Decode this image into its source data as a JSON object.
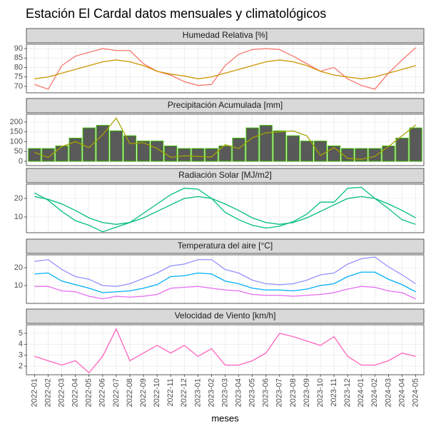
{
  "title": "Estación El Cardal datos mensuales y climatológicos",
  "chart_data": [
    {
      "type": "line",
      "title": "Humedad Relativa [%]",
      "ylim": [
        66.6,
        92.3
      ],
      "yticks": [
        70,
        75,
        80,
        85,
        90
      ],
      "grid": true,
      "series": [
        {
          "color": "#F8766D",
          "values": [
            71,
            68.5,
            81,
            86,
            88,
            90,
            89,
            89,
            82,
            78,
            76,
            72.5,
            70.5,
            71,
            81,
            87,
            89.5,
            90,
            89.5,
            86,
            82,
            78,
            80,
            74,
            70.5,
            68.5,
            77,
            84,
            90.5
          ]
        },
        {
          "color": "#CD9600",
          "values": [
            74,
            75,
            77,
            79,
            81,
            83,
            84,
            83,
            81,
            78,
            76.5,
            75.5,
            74,
            75,
            77,
            79,
            81,
            83,
            84,
            83,
            81,
            78,
            76,
            75,
            74,
            75,
            77,
            79,
            81
          ]
        }
      ]
    },
    {
      "type": "line",
      "title": "Precipitación Acumulada [mm]",
      "ylim": [
        -22,
        240
      ],
      "yticks": [
        0,
        50,
        100,
        150,
        200
      ],
      "grid": true,
      "series": [
        {
          "type": "bar",
          "color": "#595959",
          "edge_color": "#39B600",
          "values": [
            65,
            65,
            78,
            118,
            170,
            183,
            155,
            130,
            103,
            103,
            78,
            65,
            65,
            65,
            78,
            118,
            170,
            183,
            155,
            130,
            103,
            103,
            78,
            65,
            65,
            65,
            78,
            118,
            170
          ]
        },
        {
          "type": "line",
          "color": "#A3A500",
          "values": [
            45,
            20,
            75,
            100,
            70,
            135,
            220,
            90,
            95,
            65,
            20,
            28,
            25,
            22,
            85,
            65,
            120,
            145,
            150,
            155,
            130,
            30,
            70,
            15,
            10,
            25,
            75,
            130,
            185
          ]
        }
      ]
    },
    {
      "type": "line",
      "title": "Radiación Solar [MJ/m2]",
      "ylim": [
        1.5,
        27.7
      ],
      "yticks": [
        10,
        20
      ],
      "grid": true,
      "series": [
        {
          "color": "#00BA82",
          "values": [
            21,
            19.5,
            17,
            13.5,
            9.5,
            7,
            6,
            7,
            9.5,
            13,
            16.5,
            20,
            21,
            20,
            17,
            13.5,
            9.5,
            7,
            6,
            7,
            9.5,
            13,
            16.5,
            20,
            21,
            20,
            17,
            13.5,
            9.5
          ]
        },
        {
          "color": "#00BF7D",
          "values": [
            23,
            19,
            13,
            8,
            5.5,
            2,
            4.5,
            7,
            12,
            17,
            22,
            25.5,
            25,
            20,
            12.5,
            8.5,
            5.5,
            4,
            5,
            7.5,
            11.5,
            18,
            18,
            25.5,
            26,
            20,
            14.5,
            8.5,
            6
          ]
        }
      ]
    },
    {
      "type": "line",
      "title": "Temperatura del aire [°C]",
      "ylim": [
        0,
        27.2
      ],
      "yticks": [
        10,
        20
      ],
      "grid": true,
      "series": [
        {
          "color": "#9590FF",
          "values": [
            23.5,
            24.5,
            19,
            15,
            13.5,
            10,
            9.5,
            11,
            14,
            17,
            21,
            22,
            24.5,
            24.5,
            19,
            17,
            13,
            11,
            10.5,
            11,
            13,
            16,
            17,
            22,
            25,
            26,
            20.5,
            16,
            11
          ]
        },
        {
          "color": "#00B0F6",
          "values": [
            16.5,
            17,
            12.5,
            10.5,
            8.5,
            6,
            6.5,
            7,
            8.5,
            10.5,
            15,
            15.5,
            17,
            16.5,
            12.5,
            11,
            8.5,
            7.5,
            7.5,
            7,
            8,
            10,
            11,
            15,
            17.5,
            17.5,
            13.5,
            10.5,
            6.5
          ]
        },
        {
          "color": "#E76BF3",
          "values": [
            9.5,
            9.5,
            7,
            6.5,
            4,
            2.5,
            4,
            3.5,
            4,
            5,
            8.5,
            9,
            9.5,
            8.5,
            7.5,
            7,
            5,
            4.5,
            4.5,
            4,
            4.5,
            5,
            6,
            8,
            9.5,
            9,
            7,
            6,
            2.5
          ]
        }
      ]
    },
    {
      "type": "line",
      "title": "Velocidad de Viento [km/h]",
      "ylim": [
        1.22,
        5.78
      ],
      "yticks": [
        2,
        3,
        4,
        5
      ],
      "grid": true,
      "x_label": "meses",
      "categories": [
        "2022-01",
        "2022-02",
        "2022-03",
        "2022-04",
        "2022-05",
        "2022-06",
        "2022-07",
        "2022-08",
        "2022-09",
        "2022-10",
        "2022-11",
        "2022-12",
        "2023-01",
        "2023-02",
        "2023-03",
        "2023-04",
        "2023-05",
        "2023-06",
        "2023-07",
        "2023-08",
        "2023-09",
        "2023-10",
        "2023-11",
        "2023-12",
        "2024-01",
        "2024-02",
        "2024-03",
        "2024-04",
        "2024-05"
      ],
      "series": [
        {
          "color": "#FF62BC",
          "values": [
            2.9,
            2.5,
            2.1,
            2.5,
            1.4,
            2.9,
            5.4,
            2.5,
            3.2,
            3.9,
            3.2,
            3.9,
            2.9,
            3.6,
            2.1,
            2.1,
            2.5,
            3.2,
            5.0,
            4.7,
            4.3,
            3.9,
            4.7,
            2.9,
            2.1,
            2.1,
            2.5,
            3.2,
            2.9
          ]
        }
      ]
    }
  ]
}
